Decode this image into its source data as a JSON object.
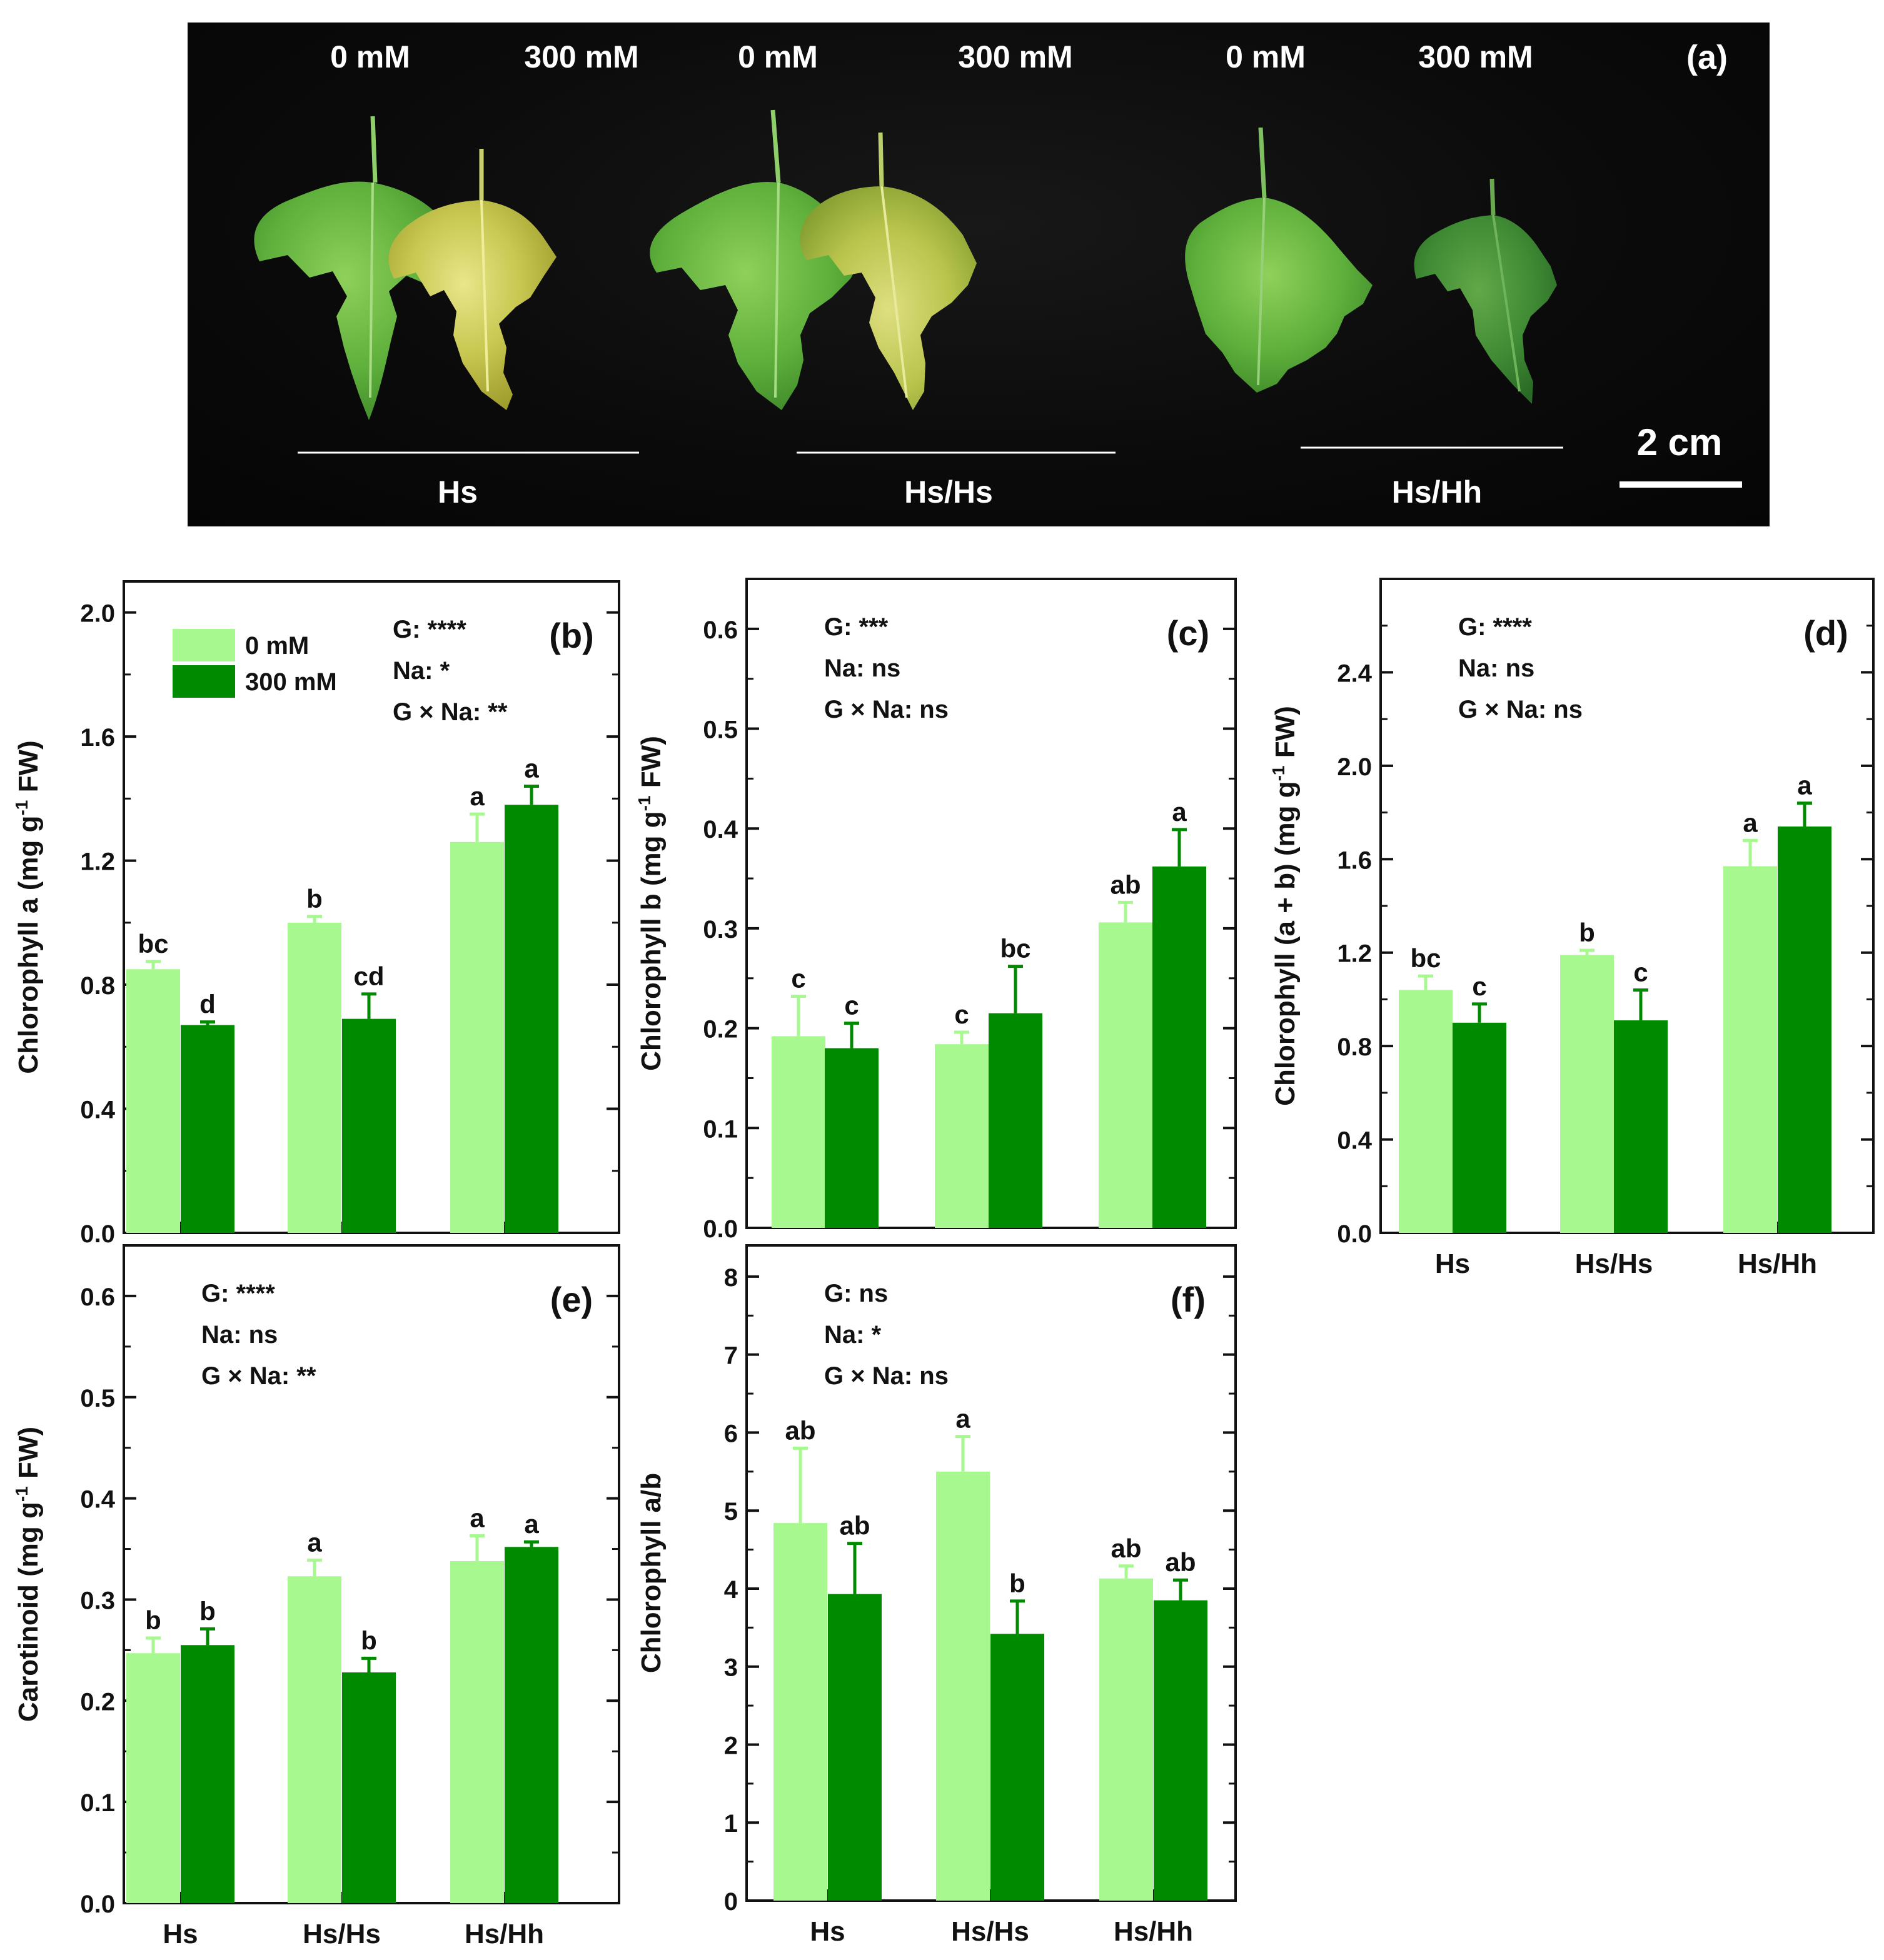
{
  "photo": {
    "panel_label": "(a)",
    "treatments": [
      "0 mM",
      "300 mM",
      "0 mM",
      "300 mM",
      "0 mM",
      "300 mM"
    ],
    "groups": [
      "Hs",
      "Hs/Hs",
      "Hs/Hh"
    ],
    "scale_bar": "2 cm"
  },
  "chart_data": [
    {
      "id": "b",
      "type": "bar",
      "panel": "(b)",
      "ylabel": "Chlorophyll a (mg g-1 FW)",
      "ylabel_main": "Chlorophyll a (mg g",
      "ylabel_sup": "-1",
      "ylabel_end": " FW)",
      "ylim": [
        0,
        2.1
      ],
      "yticks": [
        0.0,
        0.4,
        0.8,
        1.2,
        1.6,
        2.0
      ],
      "ytick_labels": [
        "0.0",
        "0.4",
        "0.8",
        "1.2",
        "1.6",
        "2.0"
      ],
      "categories": [
        "Hs",
        "Hs/Hs",
        "Hs/Hh"
      ],
      "show_xlabels": false,
      "series": [
        {
          "name": "0 mM",
          "color": "#a8f890",
          "values": [
            0.85,
            1.0,
            1.26
          ],
          "errors": [
            0.025,
            0.02,
            0.09
          ],
          "letters": [
            "bc",
            "b",
            "a"
          ]
        },
        {
          "name": "300 mM",
          "color": "#008a00",
          "values": [
            0.67,
            0.69,
            1.38
          ],
          "errors": [
            0.01,
            0.08,
            0.06
          ],
          "letters": [
            "d",
            "cd",
            "a"
          ]
        }
      ],
      "stats": [
        "G: ****",
        "Na: *",
        "G × Na: **"
      ],
      "legend": [
        {
          "label": "0 mM",
          "color": "#a8f890"
        },
        {
          "label": "300 mM",
          "color": "#008a00"
        }
      ]
    },
    {
      "id": "c",
      "type": "bar",
      "panel": "(c)",
      "ylabel": "Chlorophyll b (mg g-1 FW)",
      "ylabel_main": "Chlorophyll b (mg g",
      "ylabel_sup": "-1",
      "ylabel_end": " FW)",
      "ylim": [
        0,
        0.65
      ],
      "yticks": [
        0.0,
        0.1,
        0.2,
        0.3,
        0.4,
        0.5,
        0.6
      ],
      "ytick_labels": [
        "0.0",
        "0.1",
        "0.2",
        "0.3",
        "0.4",
        "0.5",
        "0.6"
      ],
      "categories": [
        "Hs",
        "Hs/Hs",
        "Hs/Hh"
      ],
      "show_xlabels": false,
      "series": [
        {
          "name": "0 mM",
          "color": "#a8f890",
          "values": [
            0.192,
            0.184,
            0.306
          ],
          "errors": [
            0.04,
            0.012,
            0.02
          ],
          "letters": [
            "c",
            "c",
            "ab"
          ]
        },
        {
          "name": "300 mM",
          "color": "#008a00",
          "values": [
            0.18,
            0.215,
            0.362
          ],
          "errors": [
            0.025,
            0.047,
            0.037
          ],
          "letters": [
            "c",
            "bc",
            "a"
          ]
        }
      ],
      "stats": [
        "G: ***",
        "Na: ns",
        "G × Na: ns"
      ]
    },
    {
      "id": "d",
      "type": "bar",
      "panel": "(d)",
      "ylabel": "Chlorophyll (a + b) (mg g-1 FW)",
      "ylabel_main": "Chlorophyll (a + b) (mg g",
      "ylabel_sup": "-1",
      "ylabel_end": " FW)",
      "ylim": [
        0,
        2.8
      ],
      "yticks": [
        0.0,
        0.4,
        0.8,
        1.2,
        1.6,
        2.0,
        2.4
      ],
      "ytick_labels": [
        "0.0",
        "0.4",
        "0.8",
        "1.2",
        "1.6",
        "2.0",
        "2.4"
      ],
      "categories": [
        "Hs",
        "Hs/Hs",
        "Hs/Hh"
      ],
      "show_xlabels": true,
      "series": [
        {
          "name": "0 mM",
          "color": "#a8f890",
          "values": [
            1.04,
            1.19,
            1.57
          ],
          "errors": [
            0.06,
            0.02,
            0.11
          ],
          "letters": [
            "bc",
            "b",
            "a"
          ]
        },
        {
          "name": "300 mM",
          "color": "#008a00",
          "values": [
            0.9,
            0.91,
            1.74
          ],
          "errors": [
            0.08,
            0.13,
            0.1
          ],
          "letters": [
            "c",
            "c",
            "a"
          ]
        }
      ],
      "stats": [
        "G: ****",
        "Na: ns",
        "G × Na: ns"
      ]
    },
    {
      "id": "e",
      "type": "bar",
      "panel": "(e)",
      "ylabel": "Carotinoid (mg g-1 FW)",
      "ylabel_main": "Carotinoid (mg g",
      "ylabel_sup": "-1",
      "ylabel_end": " FW)",
      "ylim": [
        0,
        0.65
      ],
      "yticks": [
        0.0,
        0.1,
        0.2,
        0.3,
        0.4,
        0.5,
        0.6
      ],
      "ytick_labels": [
        "0.0",
        "0.1",
        "0.2",
        "0.3",
        "0.4",
        "0.5",
        "0.6"
      ],
      "categories": [
        "Hs",
        "Hs/Hs",
        "Hs/Hh"
      ],
      "show_xlabels": true,
      "series": [
        {
          "name": "0 mM",
          "color": "#a8f890",
          "values": [
            0.247,
            0.323,
            0.338
          ],
          "errors": [
            0.015,
            0.016,
            0.025
          ],
          "letters": [
            "b",
            "a",
            "a"
          ]
        },
        {
          "name": "300 mM",
          "color": "#008a00",
          "values": [
            0.255,
            0.228,
            0.352
          ],
          "errors": [
            0.016,
            0.014,
            0.005
          ],
          "letters": [
            "b",
            "b",
            "a"
          ]
        }
      ],
      "stats": [
        "G: ****",
        "Na: ns",
        "G × Na: **"
      ]
    },
    {
      "id": "f",
      "type": "bar",
      "panel": "(f)",
      "ylabel": "Chlorophyll a/b",
      "ylabel_main": "Chlorophyll a/b",
      "ylabel_sup": "",
      "ylabel_end": "",
      "ylim": [
        0,
        8.4
      ],
      "yticks": [
        0,
        1,
        2,
        3,
        4,
        5,
        6,
        7,
        8
      ],
      "ytick_labels": [
        "0",
        "1",
        "2",
        "3",
        "4",
        "5",
        "6",
        "7",
        "8"
      ],
      "categories": [
        "Hs",
        "Hs/Hs",
        "Hs/Hh"
      ],
      "show_xlabels": true,
      "series": [
        {
          "name": "0 mM",
          "color": "#a8f890",
          "values": [
            4.84,
            5.5,
            4.13
          ],
          "errors": [
            0.96,
            0.45,
            0.16
          ],
          "letters": [
            "ab",
            "a",
            "ab"
          ]
        },
        {
          "name": "300 mM",
          "color": "#008a00",
          "values": [
            3.93,
            3.42,
            3.85
          ],
          "errors": [
            0.65,
            0.42,
            0.26
          ],
          "letters": [
            "ab",
            "b",
            "ab"
          ]
        }
      ],
      "stats": [
        "G: ns",
        "Na: *",
        "G × Na: ns"
      ]
    }
  ]
}
